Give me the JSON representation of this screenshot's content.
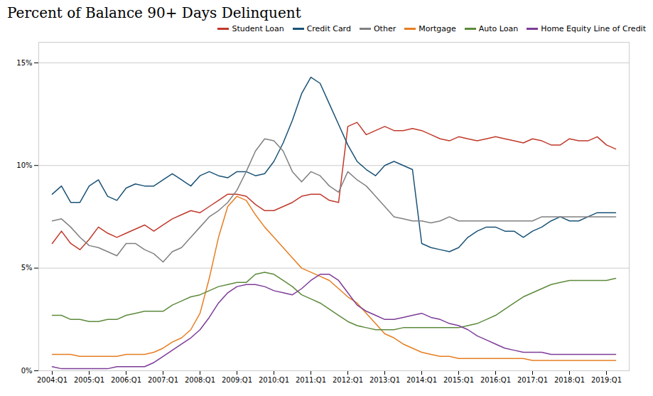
{
  "chart_data": {
    "type": "line",
    "title": "Percent of Balance 90+ Days Delinquent",
    "categories": [
      "2004:Q1",
      null,
      null,
      null,
      "2005:Q1",
      null,
      null,
      null,
      "2006:Q1",
      null,
      null,
      null,
      "2007:Q1",
      null,
      null,
      null,
      "2008:Q1",
      null,
      null,
      null,
      "2009:Q1",
      null,
      null,
      null,
      "2010:Q1",
      null,
      null,
      null,
      "2011:Q1",
      null,
      null,
      null,
      "2012:Q1",
      null,
      null,
      null,
      "2013:Q1",
      null,
      null,
      null,
      "2014:Q1",
      null,
      null,
      null,
      "2015:Q1",
      null,
      null,
      null,
      "2016:Q1",
      null,
      null,
      null,
      "2017:Q1",
      null,
      null,
      null,
      "2018:Q1",
      null,
      null,
      null,
      "2019:Q1",
      null
    ],
    "series": [
      {
        "name": "Student Loan",
        "color": "#c0392b",
        "values": [
          0.062,
          0.068,
          0.062,
          0.059,
          0.064,
          0.07,
          0.067,
          0.065,
          0.067,
          0.069,
          0.071,
          0.068,
          0.071,
          0.074,
          0.076,
          0.078,
          0.077,
          0.08,
          0.083,
          0.086,
          0.086,
          0.085,
          0.081,
          0.078,
          0.078,
          0.08,
          0.082,
          0.085,
          0.086,
          0.086,
          0.083,
          0.082,
          0.119,
          0.121,
          0.115,
          0.117,
          0.119,
          0.117,
          0.117,
          0.118,
          0.117,
          0.115,
          0.113,
          0.112,
          0.114,
          0.113,
          0.112,
          0.113,
          0.114,
          0.113,
          0.112,
          0.111,
          0.113,
          0.112,
          0.11,
          0.11,
          0.113,
          0.112,
          0.112,
          0.114,
          0.11,
          0.108
        ]
      },
      {
        "name": "Credit Card",
        "color": "#1a5276",
        "values": [
          0.086,
          0.09,
          0.082,
          0.082,
          0.09,
          0.093,
          0.085,
          0.083,
          0.089,
          0.091,
          0.09,
          0.09,
          0.093,
          0.096,
          0.093,
          0.09,
          0.095,
          0.097,
          0.095,
          0.094,
          0.097,
          0.097,
          0.095,
          0.096,
          0.102,
          0.111,
          0.122,
          0.135,
          0.143,
          0.14,
          0.13,
          0.12,
          0.11,
          0.102,
          0.098,
          0.095,
          0.1,
          0.102,
          0.1,
          0.098,
          0.062,
          0.06,
          0.059,
          0.058,
          0.06,
          0.065,
          0.068,
          0.07,
          0.07,
          0.068,
          0.068,
          0.065,
          0.068,
          0.07,
          0.073,
          0.075,
          0.073,
          0.073,
          0.075,
          0.077,
          0.077,
          0.077
        ]
      },
      {
        "name": "Other",
        "color": "#808080",
        "values": [
          0.073,
          0.074,
          0.07,
          0.065,
          0.061,
          0.06,
          0.058,
          0.056,
          0.062,
          0.062,
          0.059,
          0.057,
          0.053,
          0.058,
          0.06,
          0.065,
          0.07,
          0.075,
          0.078,
          0.082,
          0.088,
          0.097,
          0.107,
          0.113,
          0.112,
          0.107,
          0.097,
          0.092,
          0.097,
          0.095,
          0.09,
          0.087,
          0.097,
          0.093,
          0.09,
          0.085,
          0.08,
          0.075,
          0.074,
          0.073,
          0.073,
          0.072,
          0.073,
          0.075,
          0.073,
          0.073,
          0.073,
          0.073,
          0.073,
          0.073,
          0.073,
          0.073,
          0.073,
          0.075,
          0.075,
          0.075,
          0.075,
          0.075,
          0.075,
          0.075,
          0.075,
          0.075
        ]
      },
      {
        "name": "Mortgage",
        "color": "#e67e22",
        "values": [
          0.008,
          0.008,
          0.008,
          0.007,
          0.007,
          0.007,
          0.007,
          0.007,
          0.008,
          0.008,
          0.008,
          0.009,
          0.011,
          0.014,
          0.016,
          0.02,
          0.028,
          0.045,
          0.065,
          0.08,
          0.085,
          0.083,
          0.076,
          0.07,
          0.065,
          0.06,
          0.055,
          0.05,
          0.048,
          0.046,
          0.044,
          0.04,
          0.036,
          0.033,
          0.028,
          0.023,
          0.018,
          0.016,
          0.013,
          0.011,
          0.009,
          0.008,
          0.007,
          0.007,
          0.006,
          0.006,
          0.006,
          0.006,
          0.006,
          0.006,
          0.006,
          0.006,
          0.005,
          0.005,
          0.005,
          0.005,
          0.005,
          0.005,
          0.005,
          0.005,
          0.005,
          0.005
        ]
      },
      {
        "name": "Auto Loan",
        "color": "#5d8a3c",
        "values": [
          0.027,
          0.027,
          0.025,
          0.025,
          0.024,
          0.024,
          0.025,
          0.025,
          0.027,
          0.028,
          0.029,
          0.029,
          0.029,
          0.032,
          0.034,
          0.036,
          0.037,
          0.039,
          0.041,
          0.042,
          0.043,
          0.043,
          0.047,
          0.048,
          0.047,
          0.044,
          0.041,
          0.037,
          0.035,
          0.033,
          0.03,
          0.027,
          0.024,
          0.022,
          0.021,
          0.02,
          0.02,
          0.02,
          0.021,
          0.021,
          0.021,
          0.021,
          0.021,
          0.021,
          0.021,
          0.022,
          0.023,
          0.025,
          0.027,
          0.03,
          0.033,
          0.036,
          0.038,
          0.04,
          0.042,
          0.043,
          0.044,
          0.044,
          0.044,
          0.044,
          0.044,
          0.045
        ]
      },
      {
        "name": "Home Equity Line of Credit",
        "color": "#7d3c98",
        "values": [
          0.002,
          0.001,
          0.001,
          0.001,
          0.001,
          0.001,
          0.001,
          0.002,
          0.002,
          0.002,
          0.002,
          0.004,
          0.007,
          0.01,
          0.013,
          0.016,
          0.02,
          0.026,
          0.033,
          0.038,
          0.041,
          0.042,
          0.042,
          0.041,
          0.039,
          0.038,
          0.037,
          0.04,
          0.044,
          0.047,
          0.047,
          0.044,
          0.038,
          0.032,
          0.029,
          0.027,
          0.025,
          0.025,
          0.026,
          0.027,
          0.028,
          0.026,
          0.025,
          0.023,
          0.022,
          0.02,
          0.017,
          0.015,
          0.013,
          0.011,
          0.01,
          0.009,
          0.009,
          0.009,
          0.008,
          0.008,
          0.008,
          0.008,
          0.008,
          0.008,
          0.008,
          0.008
        ]
      }
    ],
    "ylim": [
      0,
      0.16
    ],
    "yticks": [
      {
        "value": 0,
        "label": "0%"
      },
      {
        "value": 0.05,
        "label": "5%"
      },
      {
        "value": 0.1,
        "label": "10%"
      },
      {
        "value": 0.15,
        "label": "15%"
      }
    ],
    "grid": true,
    "legend": "upper right"
  }
}
